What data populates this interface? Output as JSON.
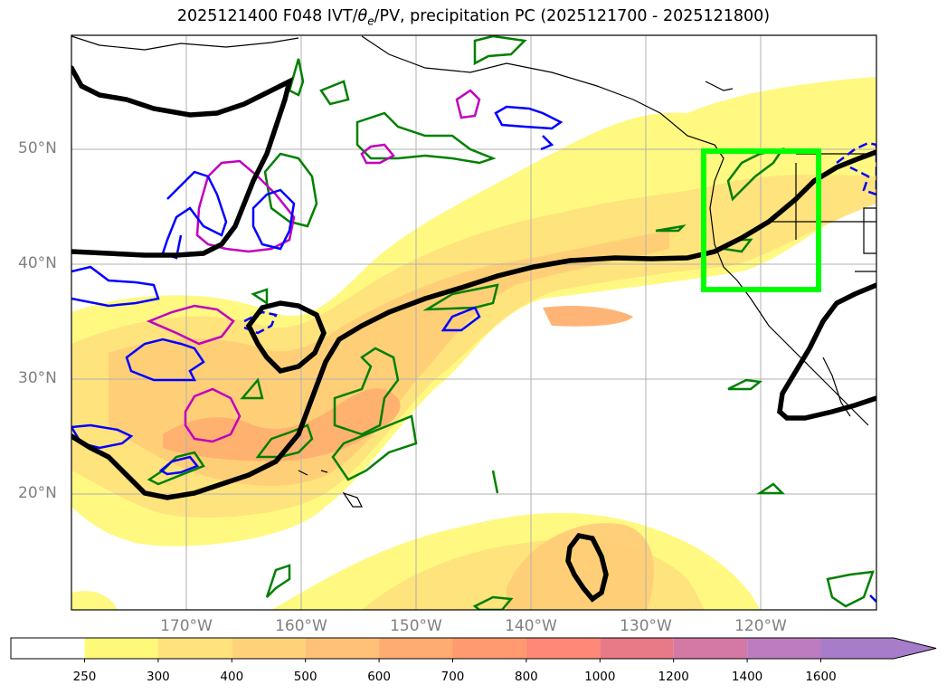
{
  "title": {
    "prefix": "2025121400 F048 IVT/",
    "theta": "θ",
    "theta_sub": "e",
    "suffix": "/PV, precipitation PC (2025121700 - 2025121800)"
  },
  "map": {
    "lon_range": [
      -180,
      -110
    ],
    "lat_range": [
      10,
      60
    ],
    "lat_labels": [
      "50°N",
      "40°N",
      "30°N",
      "20°N"
    ],
    "lat_values": [
      50,
      40,
      30,
      20
    ],
    "lon_labels": [
      "170°W",
      "160°W",
      "150°W",
      "140°W",
      "130°W",
      "120°W"
    ],
    "lon_values": [
      -170,
      -160,
      -150,
      -140,
      -130,
      -120
    ],
    "gridlines": true,
    "highlight_box": {
      "lon": [
        -125,
        -115
      ],
      "lat": [
        38,
        50
      ],
      "color": "#00ff00"
    },
    "colors": {
      "ivt_250": "#fff97a",
      "ivt_300": "#ffe27c",
      "ivt_400": "#ffcd78",
      "ivt_500": "#ffb070",
      "pv_contour": "#000000",
      "theta_contour": "#0000ff",
      "precip_green": "#008000",
      "precip_magenta": "#c000c0"
    }
  },
  "colorbar": {
    "ticks": [
      "250",
      "300",
      "400",
      "500",
      "600",
      "700",
      "800",
      "1000",
      "1200",
      "1400",
      "1600"
    ],
    "colors": [
      "#ffffff",
      "#fff97a",
      "#ffe27c",
      "#ffd27a",
      "#ffc177",
      "#ffac72",
      "#ff9a70",
      "#ff8876",
      "#e77a86",
      "#d478a6",
      "#be7cc0",
      "#a77dc9"
    ],
    "extend": "max"
  }
}
